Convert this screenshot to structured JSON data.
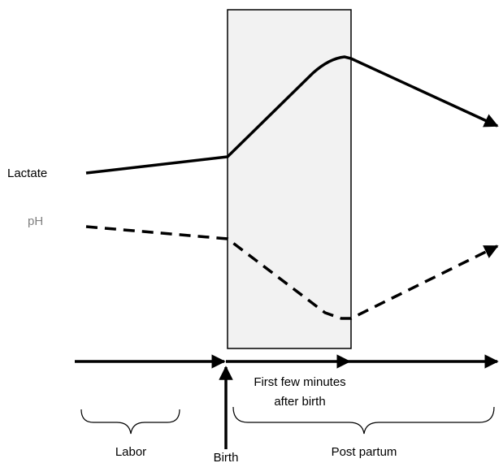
{
  "labels": {
    "lactate": "Lactate",
    "ph": "pH",
    "window_line1": "First few minutes",
    "window_line2": "after birth",
    "labor": "Labor",
    "birth": "Birth",
    "post_partum": "Post partum"
  },
  "colors": {
    "line": "#000000",
    "ph_label": "#808080",
    "window_fill": "#f2f2f2",
    "window_border": "#000000"
  },
  "series": {
    "lactate_style": "solid",
    "ph_style": "dashed"
  }
}
